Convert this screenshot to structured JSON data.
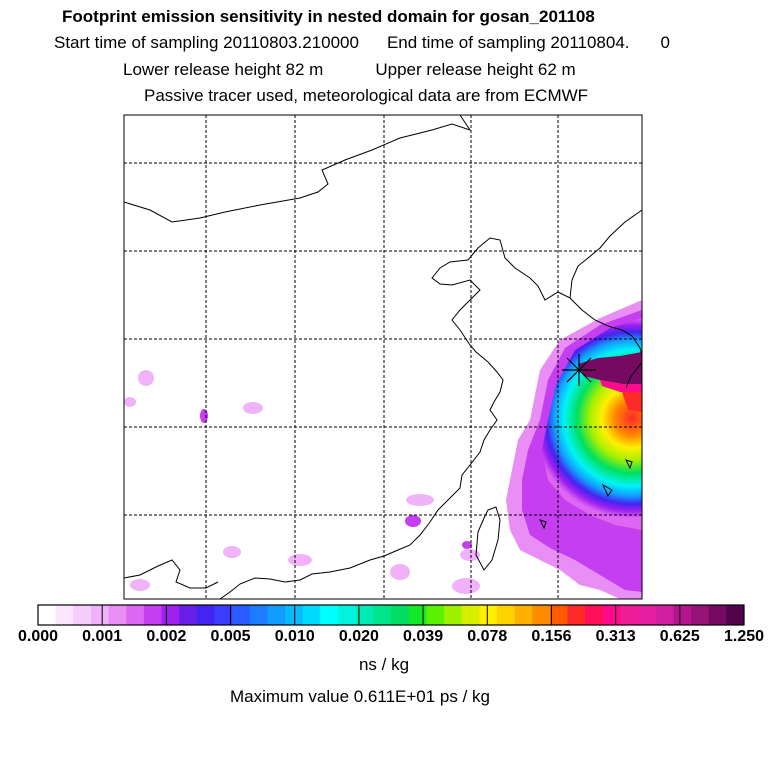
{
  "header": {
    "title": "Footprint emission sensitivity in nested domain for gosan_201108",
    "start_label": "Start time of sampling 20110803.210000",
    "end_label": "End time of sampling 20110804.",
    "end_suffix": "0",
    "lower_label": "Lower release height   82 m",
    "upper_label": "Upper release height   62 m",
    "tracer_note": "Passive tracer used, meteorological data are from ECMWF"
  },
  "colorbar": {
    "colors": [
      "#ffffff",
      "#fbe6fd",
      "#f6cdfb",
      "#f0b2f8",
      "#e88ef5",
      "#dd66f2",
      "#c53ef0",
      "#a020f0",
      "#6a1fe8",
      "#4424f0",
      "#3c3cff",
      "#2a5cff",
      "#1e7cff",
      "#129cff",
      "#06bcff",
      "#00daff",
      "#00ffff",
      "#00f4dc",
      "#00ecb4",
      "#00e48c",
      "#00dc64",
      "#14e82a",
      "#5af000",
      "#9cf000",
      "#d8f000",
      "#fff000",
      "#ffd200",
      "#ffb000",
      "#ff8c00",
      "#ff5a00",
      "#ff2a2a",
      "#ff0f5a",
      "#ff0a8c",
      "#f01e96",
      "#e61ea0",
      "#d21ea0",
      "#b4148c",
      "#961478",
      "#760a62",
      "#52044a"
    ],
    "tick_labels": [
      "0.000",
      "0.001",
      "0.002",
      "0.005",
      "0.010",
      "0.020",
      "0.039",
      "0.078",
      "0.156",
      "0.313",
      "0.625",
      "1.250"
    ],
    "unit": "ns / kg"
  },
  "footer": {
    "max_value": "Maximum value  0.611E+01 ps / kg"
  }
}
